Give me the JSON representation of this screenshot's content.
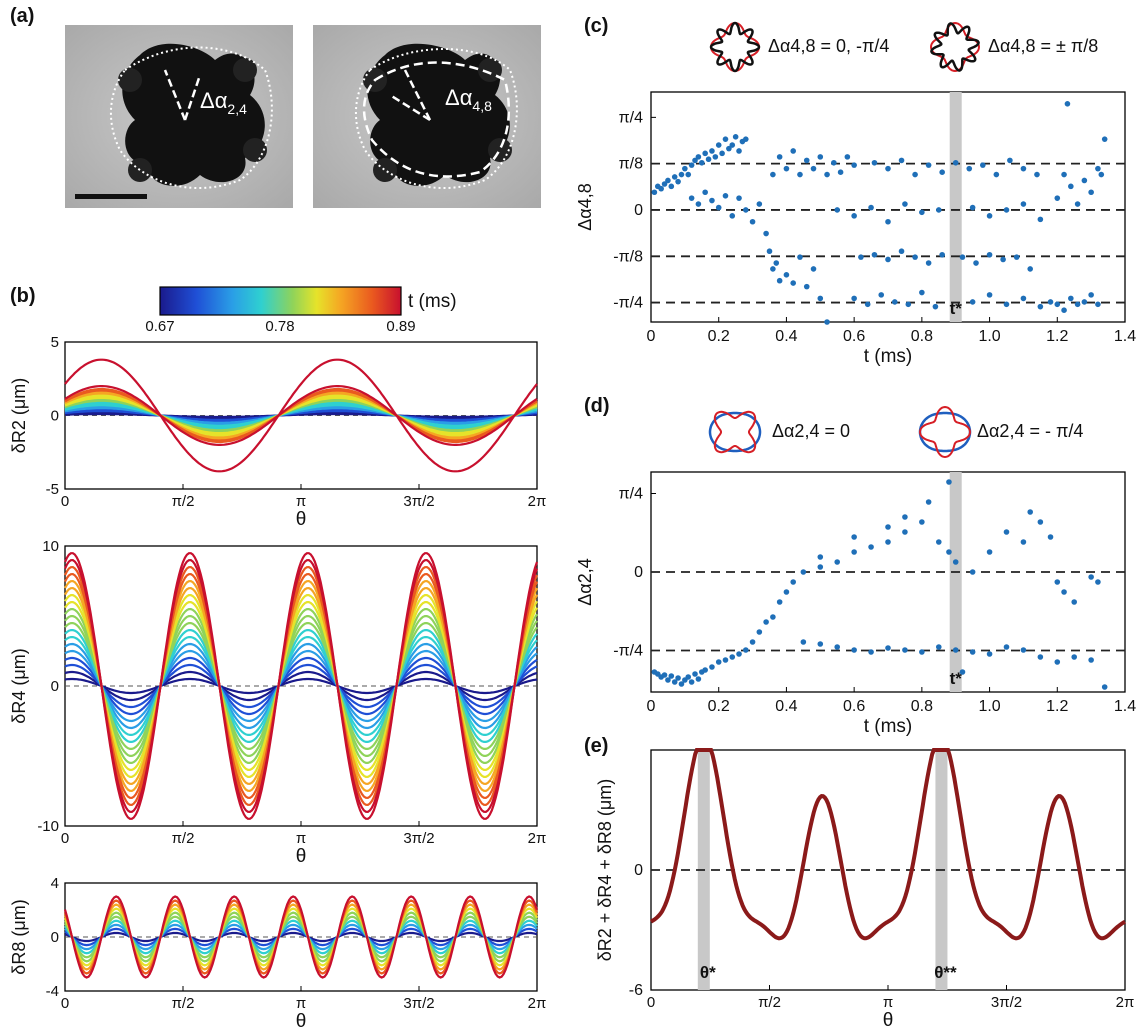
{
  "panels": {
    "a": "(a)",
    "b": "(b)",
    "c": "(c)",
    "d": "(d)",
    "e": "(e)"
  },
  "micrographs": {
    "left_label_main": "Δα",
    "left_label_sub": "2,4",
    "right_label_main": "Δα",
    "right_label_sub": "4,8"
  },
  "colorbar": {
    "title": "t (ms)",
    "tick_labels": [
      "0.67",
      "0.78",
      "0.89"
    ],
    "colors": [
      "#1a1a8c",
      "#1f4fd6",
      "#2a9ee6",
      "#2fd0d0",
      "#8fd35a",
      "#e6e32a",
      "#f5a623",
      "#ea5a1f",
      "#c8102e"
    ]
  },
  "legend_c": {
    "left_text": "Δα4,8 = 0, -π/4",
    "right_text": "Δα4,8 = ± π/8"
  },
  "legend_d": {
    "left_text": "Δα2,4 = 0",
    "right_text": "Δα2,4 = - π/4"
  },
  "colors": {
    "points": "#1f6fb8",
    "curve_e": "#8b1a1a",
    "band": "#c8c8c8",
    "dash": "#222222",
    "shape_red": "#d61f26",
    "shape_blue": "#1f5fbf"
  },
  "chart_data": [
    {
      "id": "b1",
      "type": "line",
      "xlabel": "θ",
      "ylabel": "δR2 (μm)",
      "xlim": [
        0,
        6.2832
      ],
      "ylim": [
        -5,
        5
      ],
      "x_ticks": [
        "0",
        "π/2",
        "π",
        "3π/2",
        "2π"
      ],
      "y_ticks": [
        "-5",
        "0",
        "5"
      ],
      "mode": 2,
      "phase": 0.0,
      "amplitudes": [
        0.1,
        0.2,
        0.3,
        0.4,
        0.5,
        0.6,
        0.7,
        0.8,
        0.9,
        1.0,
        1.1,
        1.2,
        1.3,
        1.4,
        1.5,
        1.6,
        1.7,
        1.8,
        2.0,
        3.8
      ]
    },
    {
      "id": "b2",
      "type": "line",
      "xlabel": "θ",
      "ylabel": "δR4 (μm)",
      "xlim": [
        0,
        6.2832
      ],
      "ylim": [
        -10,
        10
      ],
      "x_ticks": [
        "0",
        "π/2",
        "π",
        "3π/2",
        "2π"
      ],
      "y_ticks": [
        "-10",
        "0",
        "10"
      ],
      "mode": 4,
      "phase": 0.0,
      "amplitudes": [
        0.5,
        1.0,
        1.5,
        2.0,
        2.5,
        3.0,
        3.5,
        4.0,
        4.5,
        5.0,
        5.5,
        6.0,
        6.5,
        7.0,
        7.5,
        8.0,
        8.5,
        9.0,
        9.5
      ]
    },
    {
      "id": "b3",
      "type": "line",
      "xlabel": "θ",
      "ylabel": "δR8 (μm)",
      "xlim": [
        0,
        6.2832
      ],
      "ylim": [
        -4,
        4
      ],
      "x_ticks": [
        "0",
        "π/2",
        "π",
        "3π/2",
        "2π"
      ],
      "y_ticks": [
        "-4",
        "0",
        "4"
      ],
      "mode": 8,
      "phase": 0.0,
      "amplitudes": [
        0.3,
        0.6,
        0.9,
        1.2,
        1.5,
        1.8,
        2.1,
        2.4,
        2.7,
        3.0
      ]
    },
    {
      "id": "c",
      "type": "scatter",
      "xlabel": "t (ms)",
      "ylabel": "Δα4,8",
      "xlim": [
        0,
        1.4
      ],
      "ylim": [
        -0.95,
        1.0
      ],
      "x_ticks": [
        [
          "0",
          0
        ],
        [
          "0.2",
          0.2
        ],
        [
          "0.4",
          0.4
        ],
        [
          "0.6",
          0.6
        ],
        [
          "0.8",
          0.8
        ],
        [
          "1.0",
          1.0
        ],
        [
          "1.2",
          1.2
        ],
        [
          "1.4",
          1.4
        ]
      ],
      "y_ticks": [
        [
          "π/4",
          0.785
        ],
        [
          "π/8",
          0.393
        ],
        [
          "0",
          0
        ],
        [
          "-π/8",
          -0.393
        ],
        [
          "-π/4",
          -0.785
        ]
      ],
      "hlines": [
        0.393,
        0,
        -0.393,
        -0.785
      ],
      "band_x": 0.9,
      "band_label": "t*",
      "points": [
        [
          0.01,
          0.15
        ],
        [
          0.02,
          0.2
        ],
        [
          0.03,
          0.18
        ],
        [
          0.04,
          0.22
        ],
        [
          0.05,
          0.25
        ],
        [
          0.06,
          0.2
        ],
        [
          0.07,
          0.28
        ],
        [
          0.08,
          0.24
        ],
        [
          0.09,
          0.3
        ],
        [
          0.1,
          0.35
        ],
        [
          0.11,
          0.3
        ],
        [
          0.12,
          0.38
        ],
        [
          0.13,
          0.42
        ],
        [
          0.14,
          0.45
        ],
        [
          0.15,
          0.4
        ],
        [
          0.16,
          0.48
        ],
        [
          0.17,
          0.43
        ],
        [
          0.18,
          0.5
        ],
        [
          0.19,
          0.45
        ],
        [
          0.2,
          0.55
        ],
        [
          0.21,
          0.48
        ],
        [
          0.22,
          0.6
        ],
        [
          0.23,
          0.52
        ],
        [
          0.24,
          0.55
        ],
        [
          0.25,
          0.62
        ],
        [
          0.26,
          0.5
        ],
        [
          0.27,
          0.58
        ],
        [
          0.28,
          0.6
        ],
        [
          0.12,
          0.1
        ],
        [
          0.14,
          0.05
        ],
        [
          0.16,
          0.15
        ],
        [
          0.18,
          0.08
        ],
        [
          0.2,
          0.02
        ],
        [
          0.22,
          0.12
        ],
        [
          0.24,
          -0.05
        ],
        [
          0.26,
          0.1
        ],
        [
          0.28,
          0.0
        ],
        [
          0.3,
          -0.1
        ],
        [
          0.32,
          0.05
        ],
        [
          0.34,
          -0.2
        ],
        [
          0.35,
          -0.35
        ],
        [
          0.36,
          -0.5
        ],
        [
          0.37,
          -0.45
        ],
        [
          0.38,
          -0.6
        ],
        [
          0.4,
          -0.55
        ],
        [
          0.42,
          -0.62
        ],
        [
          0.44,
          -0.4
        ],
        [
          0.46,
          -0.65
        ],
        [
          0.48,
          -0.5
        ],
        [
          0.5,
          -0.75
        ],
        [
          0.52,
          -0.95
        ],
        [
          0.36,
          0.3
        ],
        [
          0.38,
          0.45
        ],
        [
          0.4,
          0.35
        ],
        [
          0.42,
          0.5
        ],
        [
          0.44,
          0.3
        ],
        [
          0.46,
          0.42
        ],
        [
          0.48,
          0.35
        ],
        [
          0.5,
          0.45
        ],
        [
          0.52,
          0.3
        ],
        [
          0.54,
          0.4
        ],
        [
          0.56,
          0.32
        ],
        [
          0.58,
          0.45
        ],
        [
          0.6,
          0.38
        ],
        [
          0.55,
          0.0
        ],
        [
          0.6,
          -0.05
        ],
        [
          0.65,
          0.02
        ],
        [
          0.7,
          -0.1
        ],
        [
          0.75,
          0.05
        ],
        [
          0.8,
          -0.02
        ],
        [
          0.85,
          0.0
        ],
        [
          0.62,
          -0.4
        ],
        [
          0.66,
          -0.38
        ],
        [
          0.7,
          -0.42
        ],
        [
          0.74,
          -0.35
        ],
        [
          0.78,
          -0.4
        ],
        [
          0.82,
          -0.45
        ],
        [
          0.86,
          -0.38
        ],
        [
          0.6,
          -0.75
        ],
        [
          0.64,
          -0.8
        ],
        [
          0.68,
          -0.72
        ],
        [
          0.72,
          -0.78
        ],
        [
          0.76,
          -0.8
        ],
        [
          0.8,
          -0.7
        ],
        [
          0.84,
          -0.82
        ],
        [
          0.66,
          0.4
        ],
        [
          0.7,
          0.35
        ],
        [
          0.74,
          0.42
        ],
        [
          0.78,
          0.3
        ],
        [
          0.82,
          0.38
        ],
        [
          0.86,
          0.32
        ],
        [
          0.9,
          0.4
        ],
        [
          0.94,
          0.35
        ],
        [
          0.98,
          0.38
        ],
        [
          1.02,
          0.3
        ],
        [
          1.06,
          0.42
        ],
        [
          1.1,
          0.35
        ],
        [
          1.14,
          0.3
        ],
        [
          0.95,
          0.02
        ],
        [
          1.0,
          -0.05
        ],
        [
          1.05,
          0.0
        ],
        [
          1.1,
          0.05
        ],
        [
          1.15,
          -0.08
        ],
        [
          0.92,
          -0.4
        ],
        [
          0.96,
          -0.45
        ],
        [
          1.0,
          -0.38
        ],
        [
          1.04,
          -0.42
        ],
        [
          1.08,
          -0.4
        ],
        [
          1.12,
          -0.5
        ],
        [
          0.95,
          -0.78
        ],
        [
          1.0,
          -0.72
        ],
        [
          1.05,
          -0.8
        ],
        [
          1.1,
          -0.75
        ],
        [
          1.15,
          -0.82
        ],
        [
          1.18,
          -0.78
        ],
        [
          1.2,
          -0.8
        ],
        [
          1.22,
          -0.85
        ],
        [
          1.24,
          -0.75
        ],
        [
          1.26,
          -0.8
        ],
        [
          1.28,
          -0.78
        ],
        [
          1.3,
          -0.72
        ],
        [
          1.32,
          -0.8
        ],
        [
          1.2,
          0.1
        ],
        [
          1.22,
          0.3
        ],
        [
          1.24,
          0.2
        ],
        [
          1.26,
          0.05
        ],
        [
          1.28,
          0.25
        ],
        [
          1.3,
          0.15
        ],
        [
          1.32,
          0.35
        ],
        [
          1.34,
          0.6
        ],
        [
          1.23,
          0.9
        ],
        [
          1.33,
          0.3
        ]
      ]
    },
    {
      "id": "d",
      "type": "scatter",
      "xlabel": "t (ms)",
      "ylabel": "Δα2,4",
      "xlim": [
        0,
        1.4
      ],
      "ylim": [
        -1.2,
        1.0
      ],
      "x_ticks": [
        [
          "0",
          0
        ],
        [
          "0.2",
          0.2
        ],
        [
          "0.4",
          0.4
        ],
        [
          "0.6",
          0.6
        ],
        [
          "0.8",
          0.8
        ],
        [
          "1.0",
          1.0
        ],
        [
          "1.2",
          1.2
        ],
        [
          "1.4",
          1.4
        ]
      ],
      "y_ticks": [
        [
          "π/4",
          0.785
        ],
        [
          "0",
          0
        ],
        [
          "-π/4",
          -0.785
        ]
      ],
      "hlines": [
        0,
        -0.785
      ],
      "band_x": 0.9,
      "band_label": "t*",
      "points": [
        [
          0.01,
          -1.0
        ],
        [
          0.02,
          -1.02
        ],
        [
          0.03,
          -1.05
        ],
        [
          0.04,
          -1.03
        ],
        [
          0.05,
          -1.08
        ],
        [
          0.06,
          -1.04
        ],
        [
          0.07,
          -1.1
        ],
        [
          0.08,
          -1.06
        ],
        [
          0.09,
          -1.12
        ],
        [
          0.1,
          -1.08
        ],
        [
          0.11,
          -1.05
        ],
        [
          0.12,
          -1.1
        ],
        [
          0.13,
          -1.02
        ],
        [
          0.14,
          -1.07
        ],
        [
          0.15,
          -1.0
        ],
        [
          0.16,
          -0.98
        ],
        [
          0.18,
          -0.95
        ],
        [
          0.2,
          -0.9
        ],
        [
          0.22,
          -0.88
        ],
        [
          0.24,
          -0.85
        ],
        [
          0.26,
          -0.82
        ],
        [
          0.28,
          -0.78
        ],
        [
          0.3,
          -0.7
        ],
        [
          0.32,
          -0.6
        ],
        [
          0.34,
          -0.5
        ],
        [
          0.36,
          -0.45
        ],
        [
          0.38,
          -0.3
        ],
        [
          0.4,
          -0.2
        ],
        [
          0.42,
          -0.1
        ],
        [
          0.45,
          0.0
        ],
        [
          0.5,
          0.05
        ],
        [
          0.55,
          0.1
        ],
        [
          0.6,
          0.2
        ],
        [
          0.65,
          0.25
        ],
        [
          0.7,
          0.3
        ],
        [
          0.75,
          0.4
        ],
        [
          0.8,
          0.5
        ],
        [
          0.82,
          0.7
        ],
        [
          0.85,
          0.3
        ],
        [
          0.88,
          0.2
        ],
        [
          0.9,
          0.1
        ],
        [
          0.95,
          0.0
        ],
        [
          1.0,
          0.2
        ],
        [
          1.05,
          0.4
        ],
        [
          1.1,
          0.3
        ],
        [
          1.15,
          0.5
        ],
        [
          1.2,
          -0.1
        ],
        [
          1.22,
          -0.2
        ],
        [
          1.25,
          -0.3
        ],
        [
          1.3,
          -0.05
        ],
        [
          1.32,
          -0.1
        ],
        [
          0.45,
          -0.7
        ],
        [
          0.5,
          -0.72
        ],
        [
          0.55,
          -0.75
        ],
        [
          0.6,
          -0.78
        ],
        [
          0.65,
          -0.8
        ],
        [
          0.7,
          -0.76
        ],
        [
          0.75,
          -0.78
        ],
        [
          0.8,
          -0.8
        ],
        [
          0.85,
          -0.75
        ],
        [
          0.9,
          -0.78
        ],
        [
          0.95,
          -0.8
        ],
        [
          1.0,
          -0.82
        ],
        [
          1.05,
          -0.75
        ],
        [
          1.1,
          -0.78
        ],
        [
          1.15,
          -0.85
        ],
        [
          1.2,
          -0.9
        ],
        [
          1.25,
          -0.85
        ],
        [
          1.3,
          -0.88
        ],
        [
          1.34,
          -1.15
        ],
        [
          0.88,
          0.9
        ],
        [
          0.92,
          -1.0
        ],
        [
          0.5,
          0.15
        ],
        [
          0.6,
          0.35
        ],
        [
          0.7,
          0.45
        ],
        [
          0.75,
          0.55
        ],
        [
          1.12,
          0.6
        ],
        [
          1.18,
          0.35
        ]
      ]
    },
    {
      "id": "e",
      "type": "line",
      "xlabel": "θ",
      "ylabel": "δR2 + δR4 + δR8 (μm)",
      "xlim": [
        0,
        6.2832
      ],
      "ylim": [
        -6,
        6
      ],
      "x_ticks": [
        "0",
        "π/2",
        "π",
        "3π/2",
        "2π"
      ],
      "y_ticks": [
        [
          "0",
          0
        ],
        [
          "-6",
          -6
        ]
      ],
      "hlines": [
        0
      ],
      "bands": [
        0.7,
        3.85
      ],
      "band_labels": [
        "θ*",
        "θ**"
      ],
      "components": [
        [
          2,
          1.5,
          0.0
        ],
        [
          4,
          4.0,
          0.0
        ],
        [
          8,
          1.2,
          0.0
        ]
      ]
    }
  ]
}
